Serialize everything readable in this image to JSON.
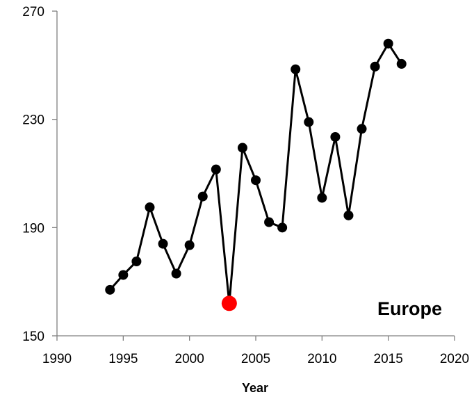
{
  "chart_data": {
    "type": "line",
    "title": "",
    "xlabel": "Year",
    "ylabel": "",
    "xlim": [
      1990,
      2020
    ],
    "ylim": [
      150,
      270
    ],
    "x_ticks": [
      1990,
      1995,
      2000,
      2005,
      2010,
      2015,
      2020
    ],
    "y_ticks": [
      150,
      190,
      230,
      270
    ],
    "grid": false,
    "annotation": "Europe",
    "series": [
      {
        "color": "#000000",
        "x": [
          1994,
          1995,
          1996,
          1997,
          1998,
          1999,
          2000,
          2001,
          2002,
          2003,
          2004,
          2005,
          2006,
          2007,
          2008,
          2009,
          2010,
          2011,
          2012,
          2013,
          2014,
          2015,
          2016
        ],
        "y": [
          167,
          172.5,
          177.5,
          197.5,
          184,
          173,
          183.5,
          201.5,
          211.5,
          162,
          219.5,
          207.5,
          192,
          190,
          248.5,
          229,
          201,
          223.5,
          194.5,
          226.5,
          249.5,
          258,
          250.5
        ]
      }
    ],
    "highlight": {
      "x": 2003,
      "y": 162,
      "color": "#ff0000"
    }
  }
}
